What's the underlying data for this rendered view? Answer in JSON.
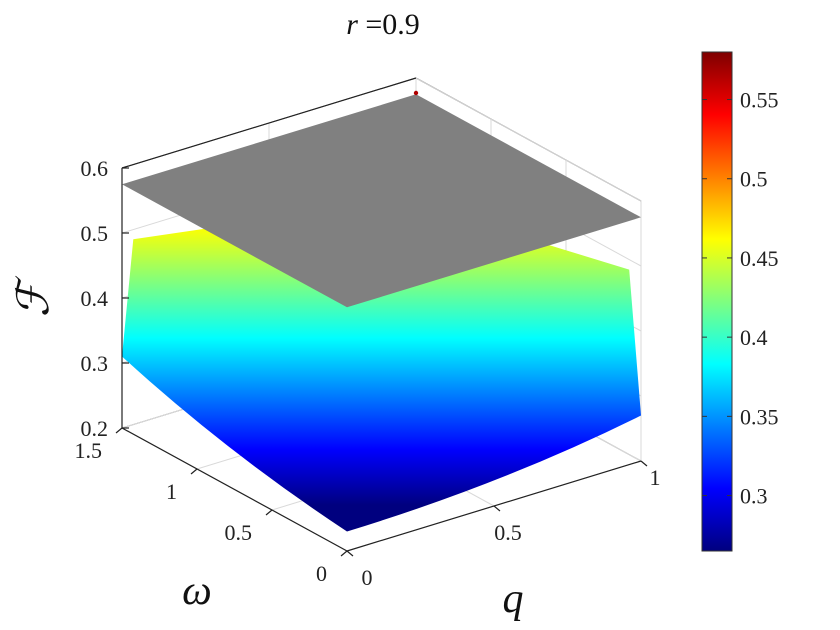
{
  "chart_data": {
    "type": "surface3d",
    "title_parts": {
      "var": "r",
      "eq": " =0.9"
    },
    "xlabel": "q",
    "ylabel": "ω",
    "zlabel": "ℱ",
    "x_ticks": [
      "0",
      "0.5",
      "1"
    ],
    "x_tick_values": [
      0,
      0.5,
      1
    ],
    "y_ticks": [
      "0",
      "0.5",
      "1",
      "1.5"
    ],
    "y_tick_values": [
      0,
      0.5,
      1,
      1.5
    ],
    "z_ticks": [
      "0.2",
      "0.3",
      "0.4",
      "0.5",
      "0.6"
    ],
    "z_tick_values": [
      0.2,
      0.3,
      0.4,
      0.5,
      0.6
    ],
    "xlim": [
      0,
      1
    ],
    "ylim": [
      0,
      1.5
    ],
    "zlim": [
      0.2,
      0.6
    ],
    "grid": true,
    "colorbar": {
      "colormap": "jet",
      "range": [
        0.265,
        0.58
      ],
      "ticks": [
        "0.3",
        "0.35",
        "0.4",
        "0.45",
        "0.5",
        "0.55"
      ],
      "tick_values": [
        0.3,
        0.35,
        0.4,
        0.45,
        0.5,
        0.55
      ],
      "colors": [
        "#00007f",
        "#0000ff",
        "#007fff",
        "#00ffff",
        "#7fff7f",
        "#ffff00",
        "#ff7f00",
        "#ff0000",
        "#7f0000"
      ]
    },
    "surfaces": [
      {
        "kind": "colored",
        "corner_values": {
          "q0_w0": 0.23,
          "q1_w0": 0.27,
          "q0_w15": 0.31,
          "q1_w15": 0.58
        },
        "edge_mid_values": {
          "q0": 0.5,
          "w0": 0.5
        }
      },
      {
        "kind": "plane",
        "value": 0.575,
        "color": "#808080"
      }
    ]
  }
}
